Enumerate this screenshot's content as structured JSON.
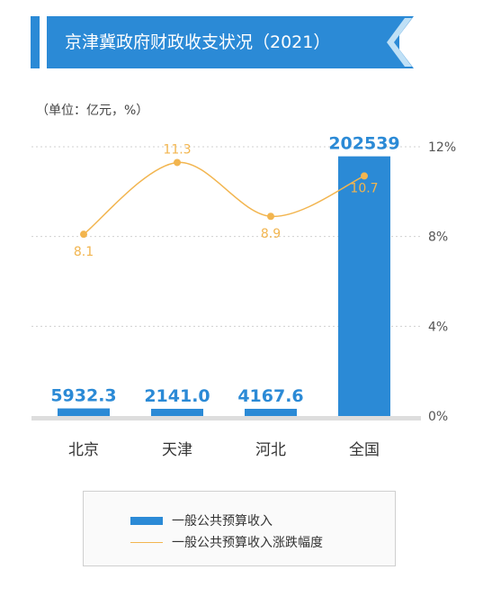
{
  "title": "京津冀政府财政收支状况（2021）",
  "unit_label": "（单位：亿元，%）",
  "colors": {
    "bar": "#2b8ad6",
    "line": "#f2b54f",
    "bar_label": "#2b8ad6",
    "axis_text": "#555555",
    "grid": "#d0d0d0"
  },
  "legend": {
    "bar_label": "一般公共预算收入",
    "line_label": "一般公共预算收入涨跌幅度"
  },
  "chart_data": {
    "type": "bar",
    "categories": [
      "北京",
      "天津",
      "河北",
      "全国"
    ],
    "series": [
      {
        "name": "一般公共预算收入",
        "type": "bar",
        "values": [
          5932.3,
          2141.0,
          4167.6,
          202539
        ],
        "labels": [
          "5932.3",
          "2141.0",
          "4167.6",
          "202539"
        ]
      },
      {
        "name": "一般公共预算收入涨跌幅度",
        "type": "line",
        "axis": "right",
        "values": [
          8.1,
          11.3,
          8.9,
          10.7
        ],
        "labels": [
          "8.1",
          "11.3",
          "8.9",
          "10.7"
        ]
      }
    ],
    "y_left_lim": [
      0,
      210000
    ],
    "y_right_lim": [
      0,
      12
    ],
    "y_right_ticks": [
      "0%",
      "4%",
      "8%",
      "12%"
    ],
    "grid": true,
    "legend_position": "bottom"
  }
}
